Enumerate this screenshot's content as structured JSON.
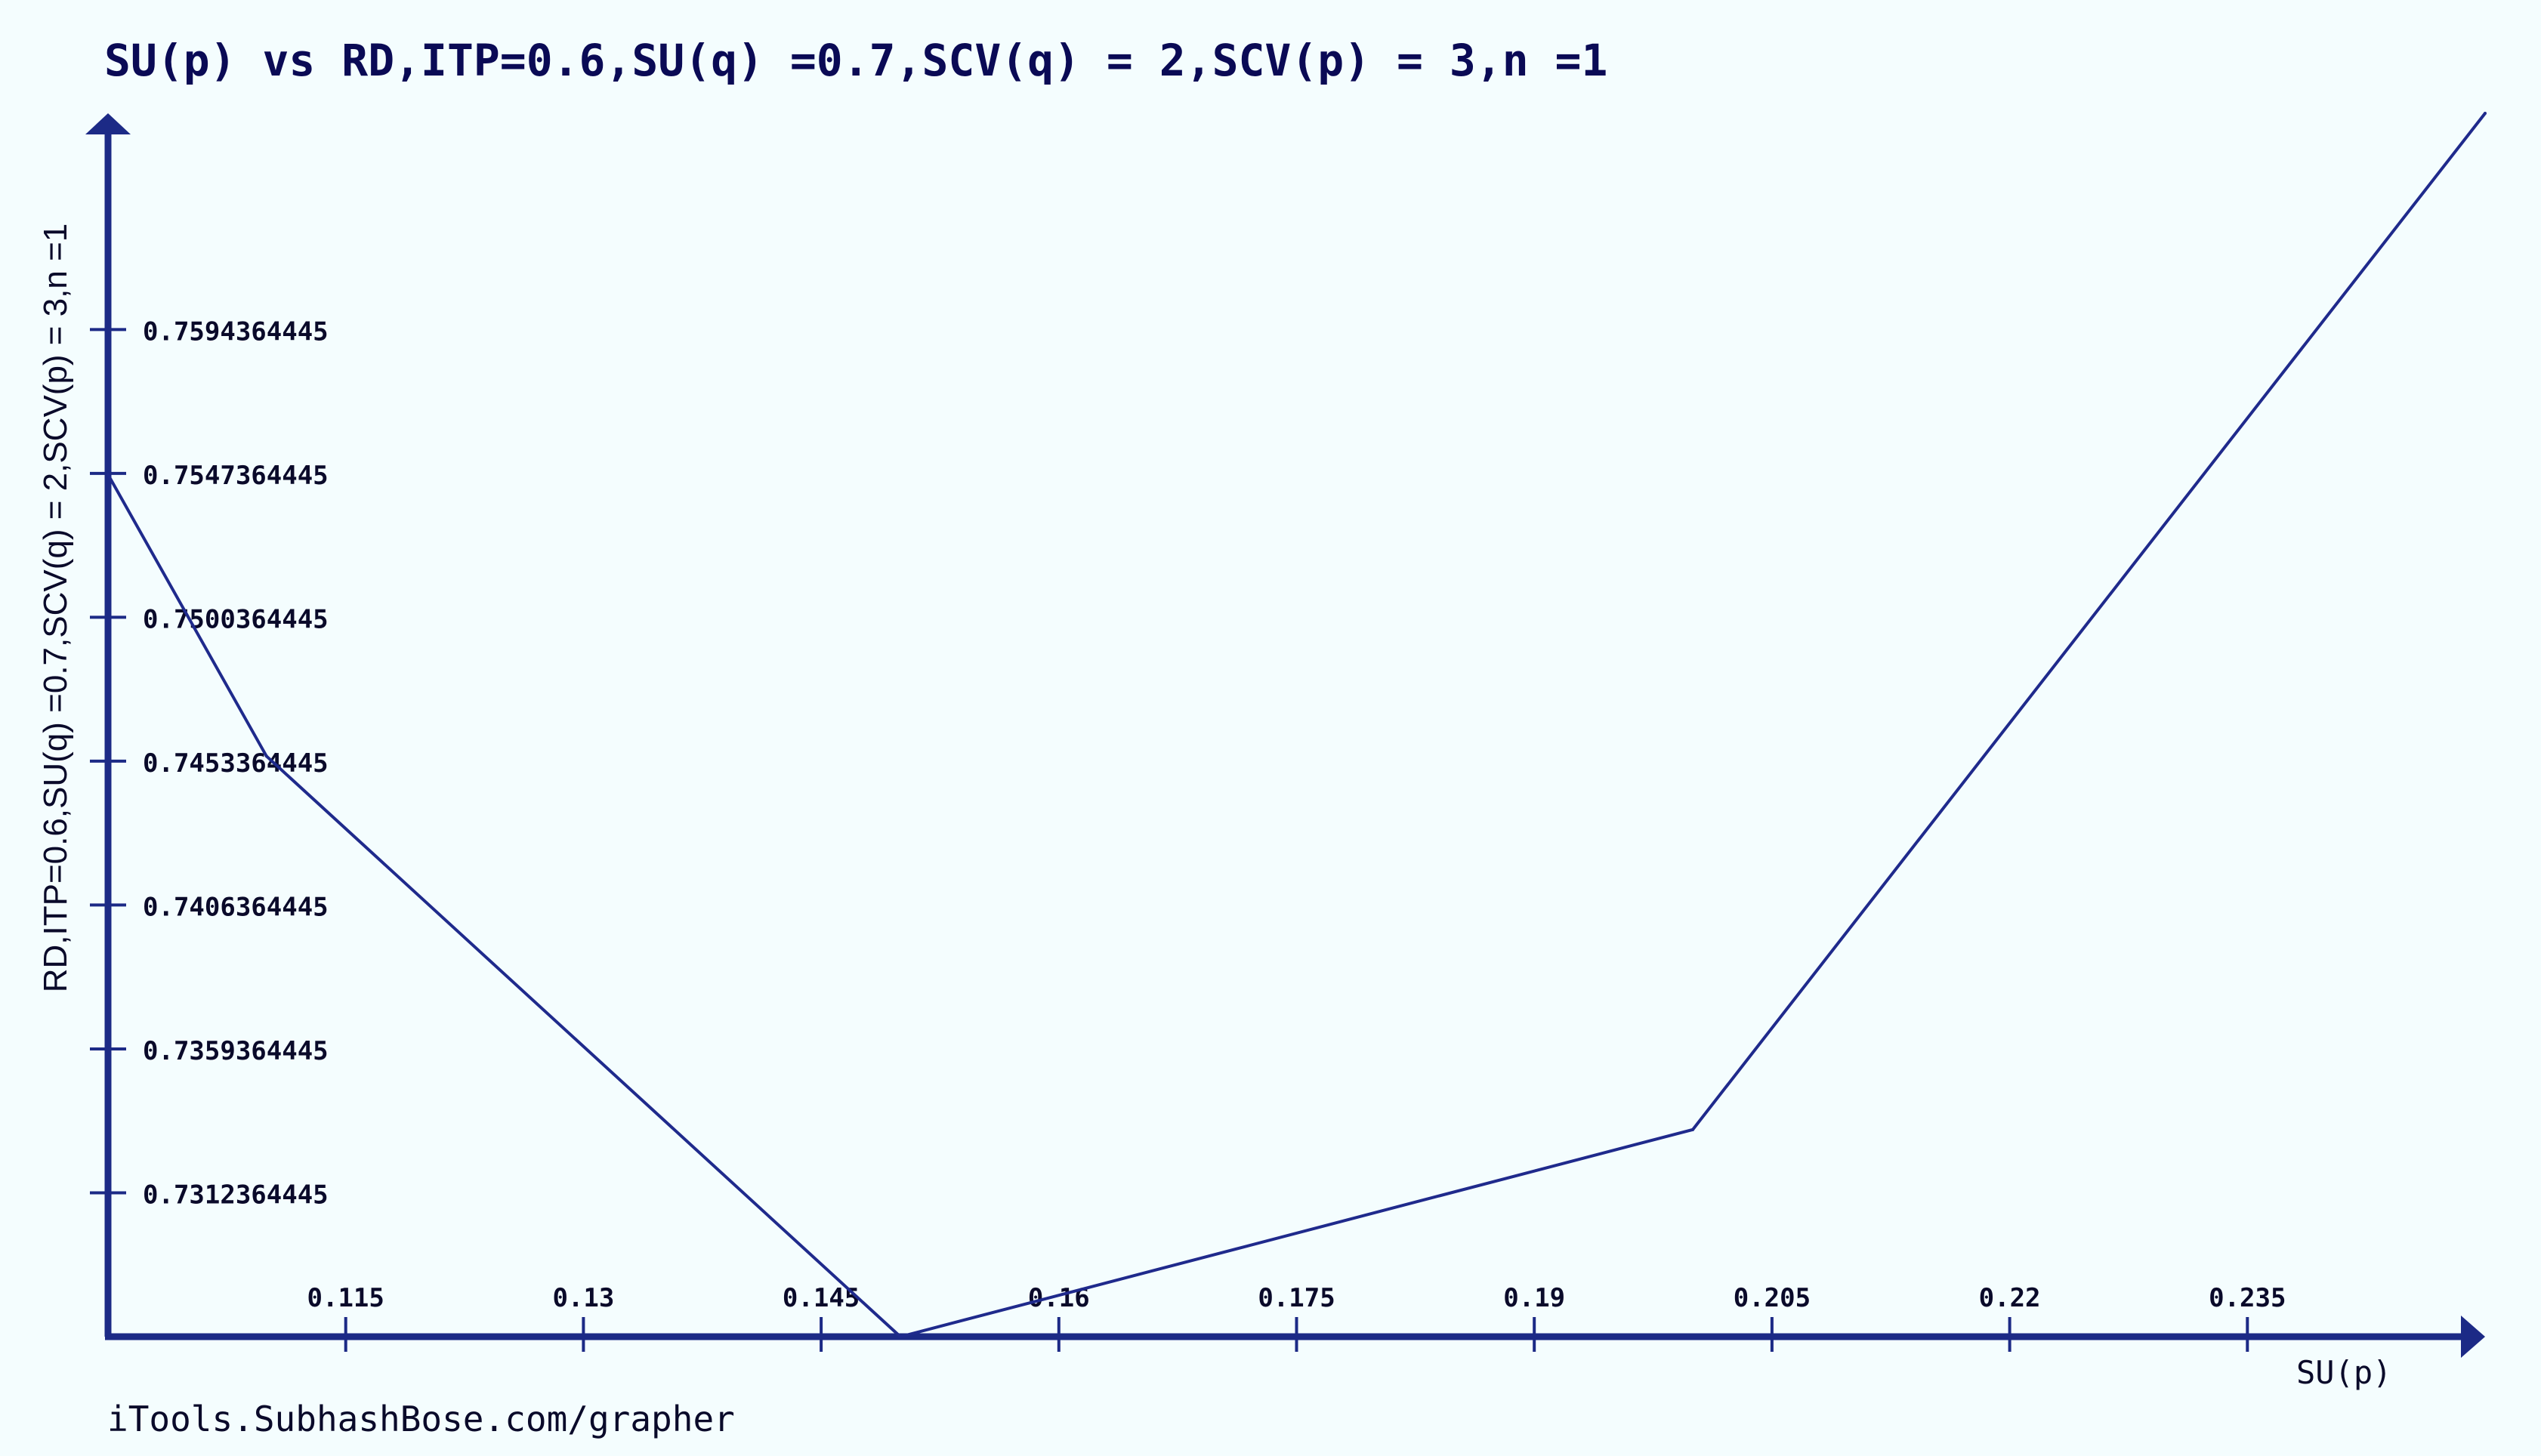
{
  "colors": {
    "background": "#f4fdfe",
    "axis": "#1c2a86",
    "series": "#1f2a8c"
  },
  "credit": "iTools.SubhashBose.com/grapher",
  "chart_data": {
    "type": "line",
    "title": "SU(p) vs RD,ITP=0.6,SU(q) =0.7,SCV(q) = 2,SCV(p) = 3,n =1",
    "xlabel": "SU(p)",
    "ylabel": "RD,ITP=0.6,SU(q) =0.7,SCV(q) = 2,SCV(p) = 3,n =1",
    "xlim": [
      0.1,
      0.25
    ],
    "ylim": [
      0.7265364445,
      0.7665
    ],
    "grid": false,
    "x_ticks": [
      0.115,
      0.13,
      0.145,
      0.16,
      0.175,
      0.19,
      0.205,
      0.22,
      0.235
    ],
    "x_tick_labels": [
      "0.115",
      "0.13",
      "0.145",
      "0.16",
      "0.175",
      "0.19",
      "0.205",
      "0.22",
      "0.235"
    ],
    "y_ticks": [
      0.7312364445,
      0.7359364445,
      0.7406364445,
      0.7453364445,
      0.7500364445,
      0.7547364445,
      0.7594364445
    ],
    "y_tick_labels": [
      "0.7312364445",
      "0.7359364445",
      "0.7406364445",
      "0.7453364445",
      "0.7500364445",
      "0.7547364445",
      "0.7594364445"
    ],
    "series": [
      {
        "x": [
          0.1,
          0.11,
          0.15,
          0.2,
          0.25
        ],
        "y": [
          0.7547,
          0.7455,
          0.7265364445,
          0.7333,
          0.7665
        ]
      }
    ]
  }
}
